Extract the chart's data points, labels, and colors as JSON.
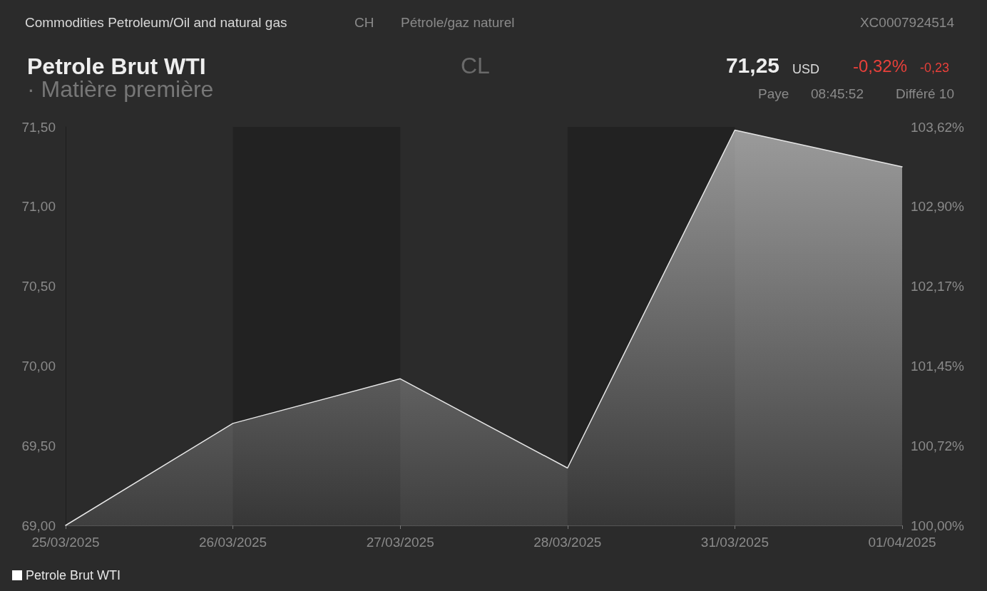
{
  "chart_data": {
    "type": "area",
    "title": "Petrole Brut WTI",
    "subtitle": "· Matière première",
    "annotations": [
      "Commodities Petroleum/Oil and natural gas",
      "CH",
      "Pétrole/gaz naturel",
      "XC0007924514",
      "CL",
      "71,25",
      "USD",
      "-0,32%",
      "-0,23",
      "Paye",
      "08:45:52",
      "Différé 10"
    ],
    "categories": [
      "25/03/2025",
      "26/03/2025",
      "27/03/2025",
      "28/03/2025",
      "31/03/2025",
      "01/04/2025"
    ],
    "series": [
      {
        "name": "Petrole Brut WTI",
        "color": "#e6e6e6",
        "values": [
          69.0,
          69.64,
          69.92,
          69.36,
          71.48,
          71.25
        ]
      }
    ],
    "ylim": [
      69,
      71.5
    ],
    "yticks": [
      {
        "value": 69,
        "label": "69,00"
      },
      {
        "value": 69.5,
        "label": "69,50"
      },
      {
        "value": 70,
        "label": "70,00"
      },
      {
        "value": 70.5,
        "label": "70,50"
      },
      {
        "value": 71,
        "label": "71,00"
      },
      {
        "value": 71.5,
        "label": "71,50"
      }
    ],
    "y2lim": [
      100,
      103.62
    ],
    "y2ticks": [
      {
        "value": 100,
        "label": "100,00%"
      },
      {
        "value": 100.72,
        "label": "100,72%"
      },
      {
        "value": 101.45,
        "label": "101,45%"
      },
      {
        "value": 102.17,
        "label": "102,17%"
      },
      {
        "value": 102.9,
        "label": "102,90%"
      },
      {
        "value": 103.62,
        "label": "103,62%"
      }
    ],
    "bands": [
      {
        "axis": "x",
        "from": "26/03/2025",
        "to": "27/03/2025",
        "color": "#222222"
      },
      {
        "axis": "x",
        "from": "28/03/2025",
        "to": "31/03/2025",
        "color": "#222222"
      }
    ],
    "grid": false,
    "legend": "bottom left",
    "marker": "none",
    "line_style": "solid"
  }
}
